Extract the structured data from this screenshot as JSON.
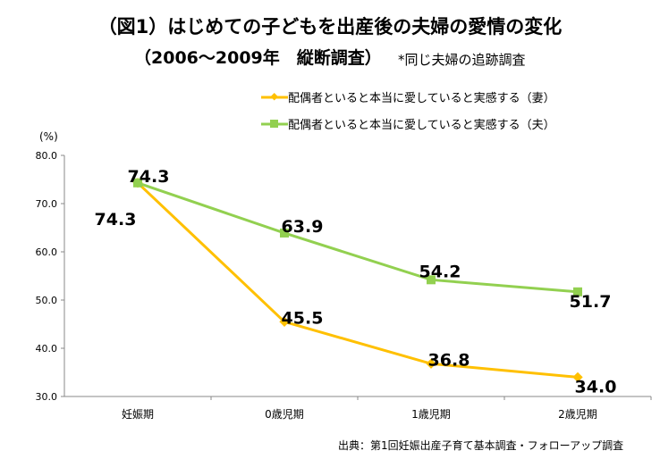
{
  "chart_data": {
    "type": "line",
    "title": "（図1）はじめての子どもを出産後の夫婦の愛情の変化",
    "subtitle": "（2006～2009年　縦断調査）",
    "note": "*同じ夫婦の追跡調査",
    "ylabel": "(%)",
    "ylim": [
      30,
      80
    ],
    "yticks": [
      "30.0",
      "40.0",
      "50.0",
      "60.0",
      "70.0",
      "80.0"
    ],
    "grid": false,
    "legend_position": "top-right",
    "categories": [
      "妊娠期",
      "0歳児期",
      "1歳児期",
      "2歳児期"
    ],
    "series": [
      {
        "name": "配偶者といると本当に愛していると実感する（妻）",
        "values": [
          74.3,
          45.5,
          36.8,
          34.0
        ],
        "labels": [
          "74.3",
          "45.5",
          "36.8",
          "34.0"
        ],
        "color": "#FFC000",
        "marker": "diamond"
      },
      {
        "name": "配偶者といると本当に愛していると実感する（夫）",
        "values": [
          74.3,
          63.9,
          54.2,
          51.7
        ],
        "labels": [
          "74.3",
          "63.9",
          "54.2",
          "51.7"
        ],
        "color": "#92D050",
        "marker": "square"
      }
    ],
    "source": "出典：第1回妊娠出産子育て基本調査・フォローアップ調査"
  }
}
